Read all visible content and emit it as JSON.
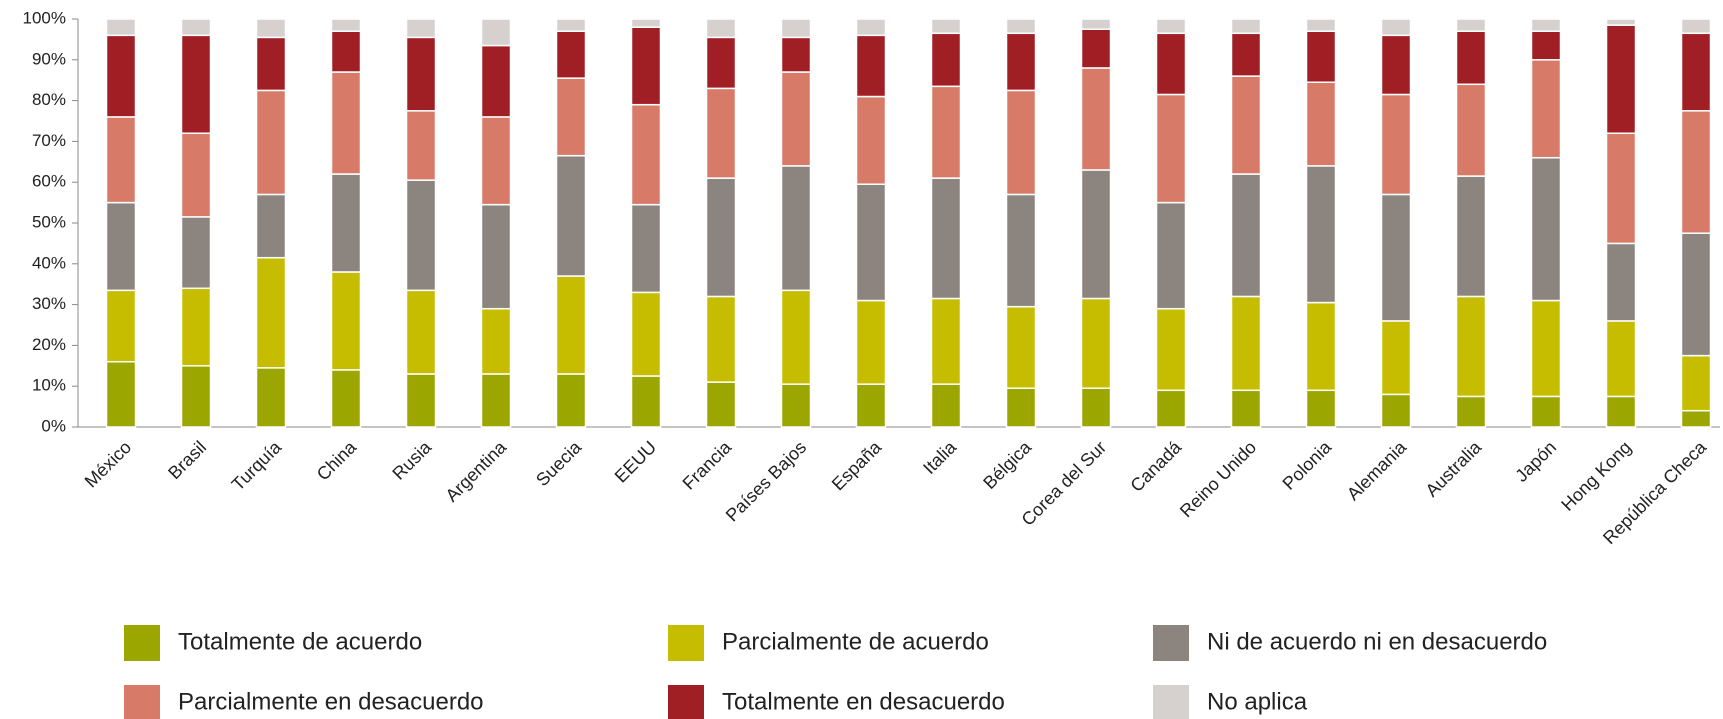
{
  "chart_data": {
    "type": "stacked_bar",
    "categories": [
      "México",
      "Brasil",
      "Turquía",
      "China",
      "Rusia",
      "Argentina",
      "Suecia",
      "EEUU",
      "Francia",
      "Países Bajos",
      "España",
      "Italia",
      "Bélgica",
      "Corea del Sur",
      "Canadá",
      "Reino Unido",
      "Polonia",
      "Alemania",
      "Australia",
      "Japón",
      "Hong Kong",
      "República Checa"
    ],
    "series": [
      {
        "name": "Totalmente de acuerdo",
        "color": "#9ca600",
        "values": [
          16,
          15,
          14.5,
          14,
          13,
          13,
          13,
          12.5,
          11,
          10.5,
          10.5,
          10.5,
          9.5,
          9.5,
          9,
          9,
          9,
          8,
          7.5,
          7.5,
          7.5,
          4
        ]
      },
      {
        "name": "Parcialmente de acuerdo",
        "color": "#c6bd00",
        "values": [
          17.5,
          19,
          27,
          24,
          20.5,
          16,
          24,
          20.5,
          21,
          23,
          20.5,
          21,
          20,
          22,
          20,
          23,
          21.5,
          18,
          24.5,
          23.5,
          18.5,
          13.5
        ]
      },
      {
        "name": "Ni de acuerdo ni en desacuerdo",
        "color": "#8c847f",
        "values": [
          21.5,
          17.5,
          15.5,
          24,
          27,
          25.5,
          29.5,
          21.5,
          29,
          30.5,
          28.5,
          29.5,
          27.5,
          31.5,
          26,
          30,
          33.5,
          31,
          29.5,
          35,
          19,
          30
        ]
      },
      {
        "name": "Parcialmente en desacuerdo",
        "color": "#d77b68",
        "values": [
          21,
          20.5,
          25.5,
          25,
          17,
          21.5,
          19,
          24.5,
          22,
          23,
          21.5,
          22.5,
          25.5,
          25,
          26.5,
          24,
          20.5,
          24.5,
          22.5,
          24,
          27,
          30
        ]
      },
      {
        "name": "Totalmente en desacuerdo",
        "color": "#a01f25",
        "values": [
          20,
          24,
          13,
          10,
          18,
          17.5,
          11.5,
          19,
          12.5,
          8.5,
          15,
          13,
          14,
          9.5,
          15,
          10.5,
          12.5,
          14.5,
          13,
          7,
          26.5,
          19
        ]
      },
      {
        "name": "No aplica",
        "color": "#d6d1cf",
        "values": [
          4,
          4,
          4.5,
          3,
          4.5,
          6.5,
          3,
          2,
          4.5,
          4.5,
          4,
          3.5,
          3.5,
          2.5,
          3.5,
          3.5,
          3,
          4,
          3,
          3,
          1.5,
          3.5
        ]
      }
    ],
    "ylim": [
      0,
      100
    ],
    "yticks": [
      {
        "value": 0,
        "label": "0%"
      },
      {
        "value": 10,
        "label": "10%"
      },
      {
        "value": 20,
        "label": "20%"
      },
      {
        "value": 30,
        "label": "30%"
      },
      {
        "value": 40,
        "label": "40%"
      },
      {
        "value": 50,
        "label": "50%"
      },
      {
        "value": 60,
        "label": "60%"
      },
      {
        "value": 70,
        "label": "70%"
      },
      {
        "value": 80,
        "label": "80%"
      },
      {
        "value": 90,
        "label": "90%"
      },
      {
        "value": 100,
        "label": "100%"
      }
    ],
    "legend": "bottom"
  }
}
